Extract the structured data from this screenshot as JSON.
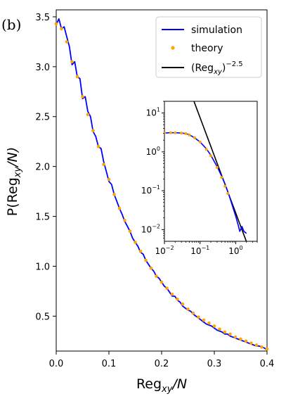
{
  "panel_label": "(b)",
  "chart_data": [
    {
      "type": "line",
      "xlabel_main": "Reg",
      "xlabel_sub": "xy",
      "xlabel_tail": "/N",
      "ylabel_main": "P(Reg",
      "ylabel_sub": "xy",
      "ylabel_tail": "/N)",
      "xlim": [
        0.0,
        0.4
      ],
      "ylim": [
        0.15,
        3.57
      ],
      "x_ticks": [
        0.0,
        0.1,
        0.2,
        0.3,
        0.4
      ],
      "x_tick_labels": [
        "0.0",
        "0.1",
        "0.2",
        "0.3",
        "0.4"
      ],
      "y_ticks": [
        0.5,
        1.0,
        1.5,
        2.0,
        2.5,
        3.0,
        3.5
      ],
      "y_tick_labels": [
        "0.5",
        "1.0",
        "1.5",
        "2.0",
        "2.5",
        "3.0",
        "3.5"
      ],
      "legend_position": "top-right",
      "legend": [
        {
          "label": "simulation",
          "color": "#0000ff",
          "style": "line"
        },
        {
          "label": "theory",
          "color": "#ffa500",
          "style": "dots"
        },
        {
          "label_main": "(Reg",
          "label_sub": "xy",
          "label_tail": ")",
          "label_sup": "−2.5",
          "color": "#000000",
          "style": "line"
        }
      ],
      "series": [
        {
          "name": "simulation",
          "color": "#0000ff",
          "x": [
            0.0,
            0.005,
            0.01,
            0.015,
            0.02,
            0.025,
            0.03,
            0.035,
            0.04,
            0.045,
            0.05,
            0.055,
            0.06,
            0.065,
            0.07,
            0.075,
            0.08,
            0.085,
            0.09,
            0.095,
            0.1,
            0.105,
            0.11,
            0.115,
            0.12,
            0.125,
            0.13,
            0.135,
            0.14,
            0.145,
            0.15,
            0.155,
            0.16,
            0.165,
            0.17,
            0.175,
            0.18,
            0.185,
            0.19,
            0.195,
            0.2,
            0.205,
            0.21,
            0.215,
            0.22,
            0.225,
            0.23,
            0.235,
            0.24,
            0.245,
            0.25,
            0.255,
            0.26,
            0.265,
            0.27,
            0.275,
            0.28,
            0.285,
            0.29,
            0.295,
            0.3,
            0.305,
            0.31,
            0.315,
            0.32,
            0.325,
            0.33,
            0.335,
            0.34,
            0.345,
            0.35,
            0.355,
            0.36,
            0.365,
            0.37,
            0.375,
            0.38,
            0.385,
            0.39,
            0.395,
            0.4
          ],
          "y": [
            3.42,
            3.48,
            3.38,
            3.4,
            3.3,
            3.2,
            3.02,
            3.05,
            2.9,
            2.88,
            2.68,
            2.7,
            2.55,
            2.5,
            2.35,
            2.3,
            2.2,
            2.18,
            2.05,
            1.95,
            1.85,
            1.82,
            1.72,
            1.65,
            1.58,
            1.52,
            1.45,
            1.4,
            1.35,
            1.28,
            1.24,
            1.2,
            1.14,
            1.12,
            1.06,
            1.02,
            0.98,
            0.95,
            0.9,
            0.88,
            0.84,
            0.8,
            0.78,
            0.74,
            0.7,
            0.7,
            0.66,
            0.64,
            0.6,
            0.58,
            0.56,
            0.55,
            0.52,
            0.5,
            0.48,
            0.46,
            0.44,
            0.42,
            0.41,
            0.4,
            0.38,
            0.36,
            0.35,
            0.34,
            0.32,
            0.32,
            0.3,
            0.29,
            0.28,
            0.27,
            0.26,
            0.25,
            0.24,
            0.23,
            0.22,
            0.21,
            0.2,
            0.2,
            0.19,
            0.18,
            0.16
          ]
        },
        {
          "name": "theory",
          "color": "#ffa500",
          "x": [
            0.0,
            0.01,
            0.02,
            0.03,
            0.04,
            0.05,
            0.06,
            0.07,
            0.08,
            0.09,
            0.1,
            0.11,
            0.12,
            0.13,
            0.14,
            0.15,
            0.16,
            0.17,
            0.18,
            0.19,
            0.2,
            0.21,
            0.22,
            0.23,
            0.24,
            0.25,
            0.26,
            0.27,
            0.28,
            0.29,
            0.3,
            0.31,
            0.32,
            0.33,
            0.34,
            0.35,
            0.36,
            0.37,
            0.38,
            0.39,
            0.4
          ],
          "y": [
            3.43,
            3.38,
            3.25,
            3.05,
            2.9,
            2.7,
            2.52,
            2.36,
            2.2,
            2.02,
            1.87,
            1.72,
            1.58,
            1.46,
            1.35,
            1.24,
            1.15,
            1.06,
            0.98,
            0.9,
            0.84,
            0.78,
            0.72,
            0.67,
            0.62,
            0.57,
            0.53,
            0.49,
            0.46,
            0.43,
            0.4,
            0.37,
            0.34,
            0.32,
            0.29,
            0.27,
            0.25,
            0.23,
            0.21,
            0.19,
            0.17
          ]
        }
      ]
    },
    {
      "type": "line",
      "position": "inset",
      "xscale": "log",
      "yscale": "log",
      "xlim": [
        0.01,
        4.0
      ],
      "ylim": [
        0.005,
        20
      ],
      "x_tick_labels": [
        {
          "base": "10",
          "exp": "−2",
          "value": 0.01
        },
        {
          "base": "10",
          "exp": "−1",
          "value": 0.1
        },
        {
          "base": "10",
          "exp": "0",
          "value": 1
        }
      ],
      "y_tick_labels": [
        {
          "base": "10",
          "exp": "1",
          "value": 10
        },
        {
          "base": "10",
          "exp": "0",
          "value": 1
        },
        {
          "base": "10",
          "exp": "−1",
          "value": 0.1
        },
        {
          "base": "10",
          "exp": "−2",
          "value": 0.01
        }
      ],
      "series": [
        {
          "name": "simulation",
          "color": "#0000ff",
          "x": [
            0.01,
            0.015,
            0.02,
            0.03,
            0.04,
            0.05,
            0.07,
            0.1,
            0.15,
            0.2,
            0.3,
            0.4,
            0.5,
            0.6,
            0.7,
            0.8,
            0.9,
            1.0,
            1.1,
            1.2,
            1.3,
            1.5,
            1.7,
            2.0
          ],
          "y": [
            3.05,
            3.1,
            3.1,
            3.05,
            2.95,
            2.75,
            2.3,
            1.8,
            1.2,
            0.82,
            0.42,
            0.24,
            0.15,
            0.095,
            0.062,
            0.042,
            0.03,
            0.022,
            0.016,
            0.012,
            0.009,
            0.012,
            0.009,
            0.008
          ]
        },
        {
          "name": "theory",
          "color": "#ffa500",
          "x": [
            0.01,
            0.015,
            0.02,
            0.03,
            0.04,
            0.05,
            0.07,
            0.1,
            0.15,
            0.2,
            0.3,
            0.4,
            0.5,
            0.6
          ],
          "y": [
            3.1,
            3.12,
            3.1,
            3.05,
            2.95,
            2.72,
            2.3,
            1.8,
            1.15,
            0.8,
            0.4,
            0.22,
            0.13,
            0.085
          ]
        },
        {
          "name": "(Reg_xy)^-2.5",
          "color": "#000000",
          "x": [
            0.065,
            2.0
          ],
          "y": [
            21.9,
            0.0049
          ]
        }
      ]
    }
  ]
}
